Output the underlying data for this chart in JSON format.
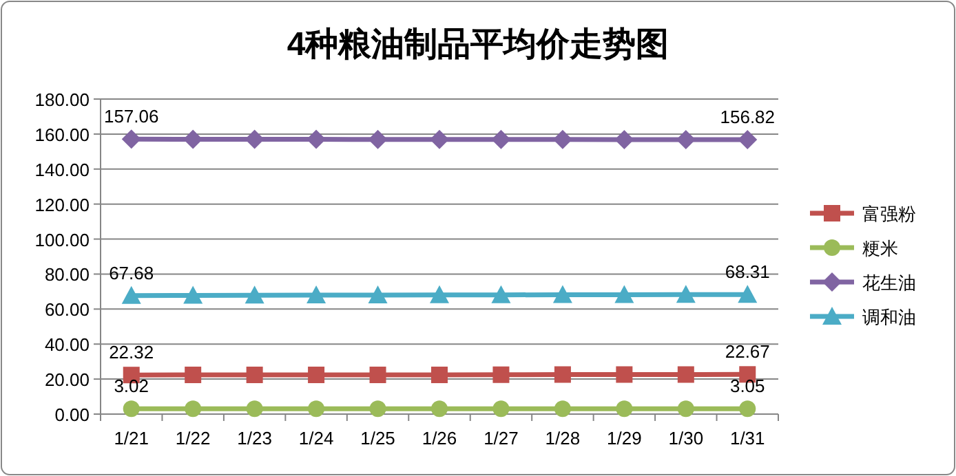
{
  "chart_data": {
    "type": "line",
    "title": "4种粮油制品平均价走势图",
    "categories": [
      "1/21",
      "1/22",
      "1/23",
      "1/24",
      "1/25",
      "1/26",
      "1/27",
      "1/28",
      "1/29",
      "1/30",
      "1/31"
    ],
    "series": [
      {
        "name": "富强粉",
        "color": "#c0504d",
        "marker": "square",
        "values": [
          22.32,
          22.4,
          22.4,
          22.4,
          22.4,
          22.4,
          22.5,
          22.6,
          22.6,
          22.6,
          22.67
        ],
        "value_labels": [
          "22.32",
          null,
          null,
          null,
          null,
          null,
          null,
          null,
          null,
          null,
          "22.67"
        ]
      },
      {
        "name": "粳米",
        "color": "#9bbb59",
        "marker": "circle",
        "values": [
          3.02,
          3.02,
          3.02,
          3.02,
          3.03,
          3.03,
          3.03,
          3.04,
          3.04,
          3.05,
          3.05
        ],
        "value_labels": [
          "3.02",
          null,
          null,
          null,
          null,
          null,
          null,
          null,
          null,
          null,
          "3.05"
        ]
      },
      {
        "name": "花生油",
        "color": "#8064a2",
        "marker": "diamond",
        "values": [
          157.06,
          157.0,
          157.0,
          157.0,
          156.9,
          156.9,
          156.9,
          156.9,
          156.8,
          156.8,
          156.82
        ],
        "value_labels": [
          "157.06",
          null,
          null,
          null,
          null,
          null,
          null,
          null,
          null,
          null,
          "156.82"
        ]
      },
      {
        "name": "调和油",
        "color": "#4bacc6",
        "marker": "triangle",
        "values": [
          67.68,
          67.8,
          67.9,
          68.0,
          68.0,
          68.1,
          68.1,
          68.2,
          68.2,
          68.3,
          68.31
        ],
        "value_labels": [
          "67.68",
          null,
          null,
          null,
          null,
          null,
          null,
          null,
          null,
          null,
          "68.31"
        ]
      }
    ],
    "ylim": [
      0,
      180
    ],
    "yticks": [
      {
        "value": 0,
        "label": "0.00"
      },
      {
        "value": 20,
        "label": "20.00"
      },
      {
        "value": 40,
        "label": "40.00"
      },
      {
        "value": 60,
        "label": "60.00"
      },
      {
        "value": 80,
        "label": "80.00"
      },
      {
        "value": 100,
        "label": "100.00"
      },
      {
        "value": 120,
        "label": "120.00"
      },
      {
        "value": 140,
        "label": "140.00"
      },
      {
        "value": 160,
        "label": "160.00"
      },
      {
        "value": 180,
        "label": "180.00"
      }
    ],
    "grid": "y",
    "legend": "right",
    "line_style": "solid"
  }
}
